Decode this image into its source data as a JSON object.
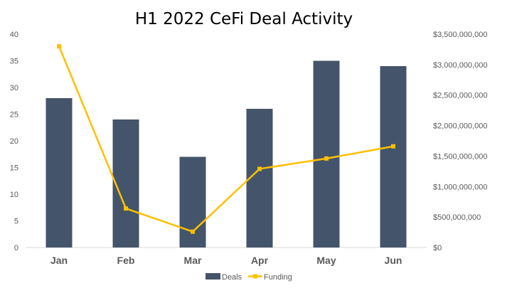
{
  "chart_data": {
    "type": "bar",
    "title": "H1 2022 CeFi Deal Activity",
    "categories": [
      "Jan",
      "Feb",
      "Mar",
      "Apr",
      "May",
      "Jun"
    ],
    "series": [
      {
        "name": "Deals",
        "type": "bar",
        "axis": "left",
        "color": "#44546a",
        "values": [
          28,
          24,
          17,
          26,
          35,
          34
        ]
      },
      {
        "name": "Funding",
        "type": "line",
        "axis": "right",
        "color": "#ffc000",
        "values": [
          3300000000,
          640000000,
          260000000,
          1290000000,
          1460000000,
          1660000000
        ]
      }
    ],
    "ylim": [
      0,
      40
    ],
    "y2lim": [
      0,
      3500000000
    ],
    "y_ticks": [
      "0",
      "5",
      "10",
      "15",
      "20",
      "25",
      "30",
      "35",
      "40"
    ],
    "y2_ticks": [
      "$0",
      "$500,000,000",
      "$1,000,000,000",
      "$1,500,000,000",
      "$2,000,000,000",
      "$2,500,000,000",
      "$3,000,000,000",
      "$3,500,000,000"
    ],
    "grid": false,
    "legend_position": "bottom"
  }
}
